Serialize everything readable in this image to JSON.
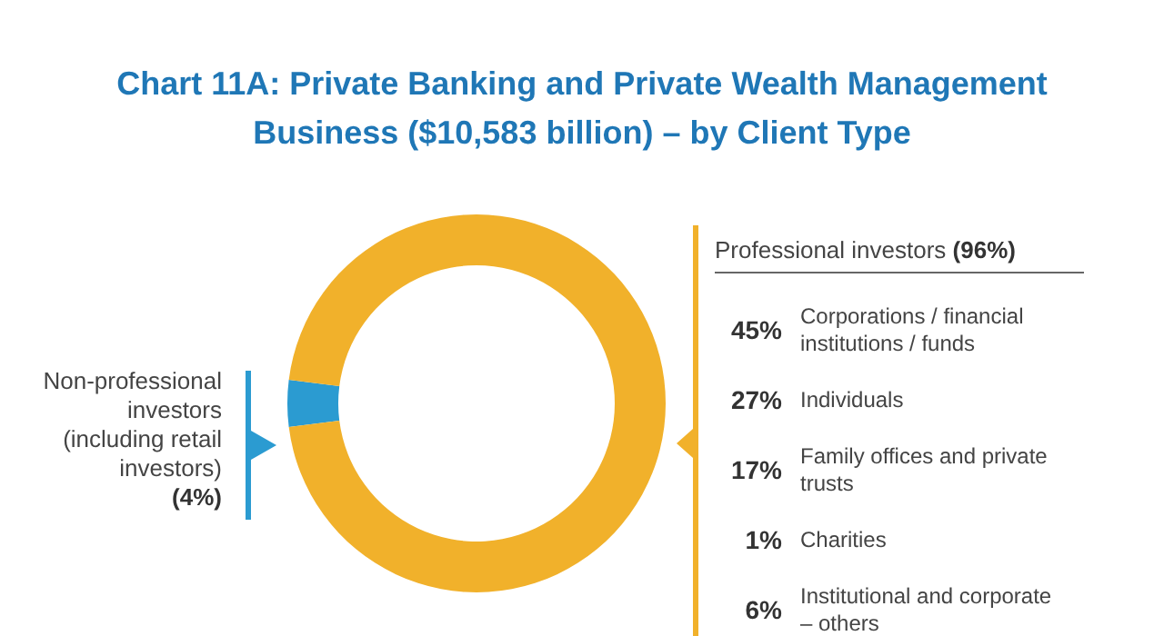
{
  "chart_data": {
    "type": "donut",
    "title": "Chart 11A: Private Banking and Private Wealth Management Business ($10,583 billion) – by Client Type",
    "categories": [
      "Non-professional investors (including retail investors)",
      "Professional investors"
    ],
    "values": [
      4,
      96
    ],
    "colors": [
      "#2b9bd1",
      "#f1b12b"
    ],
    "value_labels": [
      "(4%)",
      "(96%)"
    ],
    "annotations": [
      "45% Corporations / financial institutions / funds",
      "27% Individuals",
      "17% Family offices and private trusts",
      "1% Charities",
      "6% Institutional and corporate – others"
    ]
  }
}
